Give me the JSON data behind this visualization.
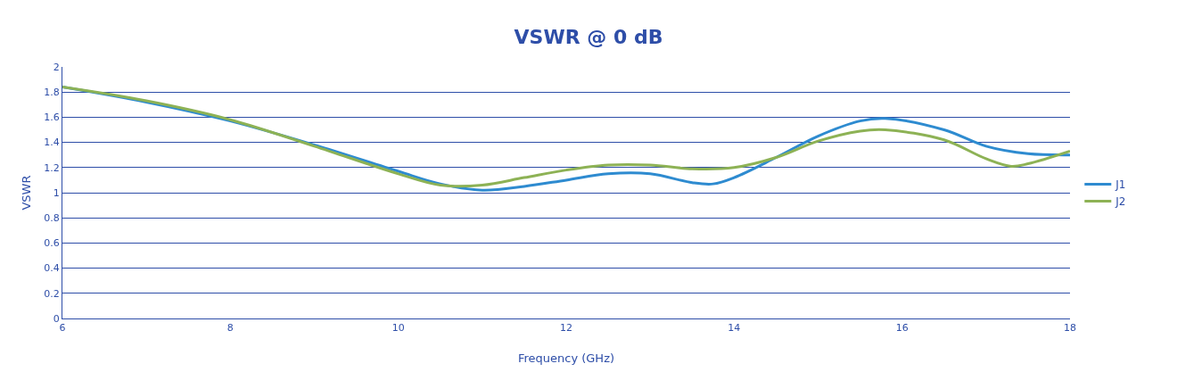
{
  "chart_data": {
    "type": "line",
    "title": "VSWR @ 0 dB",
    "xlabel": "Frequency (GHz)",
    "ylabel": "VSWR",
    "xlim": [
      6,
      18
    ],
    "xticks": [
      6,
      8,
      10,
      12,
      14,
      16,
      18
    ],
    "ylim": [
      0,
      2
    ],
    "yticks": [
      0,
      0.2,
      0.4,
      0.6,
      0.8,
      1,
      1.2,
      1.4,
      1.6,
      1.8,
      2
    ],
    "grid": "y",
    "legend": "right",
    "marker": "none",
    "line_style": "solid",
    "x": [
      6,
      7,
      8,
      9,
      10,
      10.5,
      11,
      11.5,
      12,
      12.5,
      13,
      13.5,
      13.75,
      14,
      14.5,
      15,
      15.5,
      15.8,
      16.5,
      17,
      17.5,
      18
    ],
    "series": [
      {
        "name": "J1",
        "color": "#2e8bd0",
        "values": [
          1.84,
          1.72,
          1.57,
          1.38,
          1.17,
          1.07,
          1.02,
          1.05,
          1.1,
          1.15,
          1.15,
          1.08,
          1.07,
          1.12,
          1.28,
          1.45,
          1.57,
          1.59,
          1.5,
          1.37,
          1.31,
          1.3
        ]
      },
      {
        "name": "J2",
        "color": "#8db255",
        "x": [
          6,
          7,
          8,
          9,
          10,
          10.5,
          11,
          11.5,
          12,
          12.5,
          13,
          13.5,
          14,
          14.5,
          15,
          15.5,
          15.8,
          16.5,
          17,
          17.3,
          17.5,
          18
        ],
        "values": [
          1.84,
          1.73,
          1.58,
          1.37,
          1.15,
          1.06,
          1.06,
          1.12,
          1.18,
          1.22,
          1.22,
          1.19,
          1.2,
          1.28,
          1.41,
          1.49,
          1.5,
          1.42,
          1.27,
          1.21,
          1.23,
          1.33
        ]
      }
    ]
  }
}
